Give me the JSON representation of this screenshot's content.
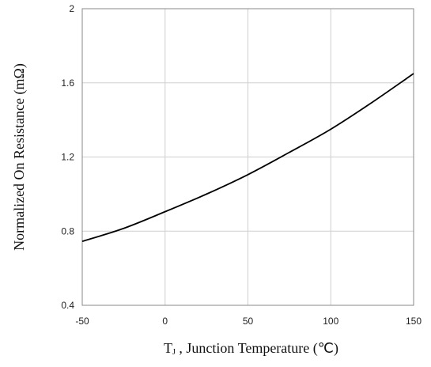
{
  "chart_data": {
    "type": "line",
    "title": "",
    "xlabel": "Tⱼ , Junction Temperature (℃)",
    "xlabel_main": "T",
    "xlabel_sub": "J",
    "xlabel_rest": " , Junction Temperature (℃)",
    "ylabel": "Normalized On Resistance (mΩ)",
    "xlim": [
      -50,
      150
    ],
    "ylim": [
      0.4,
      2.0
    ],
    "x_ticks": [
      "-50",
      "0",
      "50",
      "100",
      "150"
    ],
    "y_ticks": [
      "0.4",
      "0.8",
      "1.2",
      "1.6",
      "2"
    ],
    "grid": true,
    "legend": "none",
    "series": [
      {
        "color": "#000000",
        "x": [
          -50,
          -25,
          0,
          25,
          50,
          75,
          100,
          125,
          150
        ],
        "y": [
          0.745,
          0.815,
          0.905,
          1.0,
          1.105,
          1.225,
          1.35,
          1.495,
          1.65
        ]
      }
    ]
  }
}
